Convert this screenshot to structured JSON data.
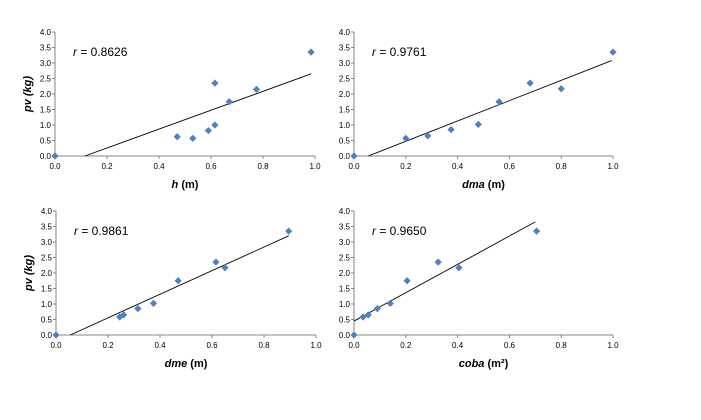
{
  "chart_data": [
    {
      "type": "scatter",
      "xlabel_var": "h",
      "xlabel_unit": " (m)",
      "ylabel": "pv (kg)",
      "annotation": "r = 0.8626",
      "xlim": [
        0,
        1.0
      ],
      "ylim": [
        0,
        4.0
      ],
      "x_ticks": [
        "0.0",
        "0.2",
        "0.4",
        "0.6",
        "0.8",
        "1.0"
      ],
      "y_ticks": [
        "0.0",
        "0.5",
        "1.0",
        "1.5",
        "2.0",
        "2.5",
        "3.0",
        "3.5",
        "4.0"
      ],
      "points": [
        [
          0,
          0
        ],
        [
          0.47,
          0.62
        ],
        [
          0.53,
          0.57
        ],
        [
          0.59,
          0.82
        ],
        [
          0.615,
          1.0
        ],
        [
          0.615,
          2.35
        ],
        [
          0.67,
          1.75
        ],
        [
          0.775,
          2.15
        ],
        [
          0.985,
          3.35
        ]
      ],
      "trendline": [
        [
          0.115,
          0
        ],
        [
          0.985,
          2.65
        ]
      ],
      "color": "#4F81BD"
    },
    {
      "type": "scatter",
      "xlabel_var": "dma",
      "xlabel_unit": " (m)",
      "ylabel": "",
      "annotation": "r = 0.9761",
      "xlim": [
        0,
        1.0
      ],
      "ylim": [
        0,
        4.0
      ],
      "x_ticks": [
        "0.0",
        "0.2",
        "0.4",
        "0.6",
        "0.8",
        "1.0"
      ],
      "y_ticks": [
        "0.0",
        "0.5",
        "1.0",
        "1.5",
        "2.0",
        "2.5",
        "3.0",
        "3.5",
        "4.0"
      ],
      "points": [
        [
          0,
          0
        ],
        [
          0.2,
          0.57
        ],
        [
          0.285,
          0.65
        ],
        [
          0.375,
          0.85
        ],
        [
          0.48,
          1.02
        ],
        [
          0.56,
          1.75
        ],
        [
          0.68,
          2.35
        ],
        [
          0.8,
          2.17
        ],
        [
          1.0,
          3.35
        ]
      ],
      "trendline": [
        [
          0.055,
          0
        ],
        [
          0.995,
          3.08
        ]
      ],
      "color": "#4F81BD"
    },
    {
      "type": "scatter",
      "xlabel_var": "dme",
      "xlabel_unit": " (m)",
      "ylabel": "pv (kg)",
      "annotation": "r = 0.9861",
      "xlim": [
        0,
        1.0
      ],
      "ylim": [
        0,
        4.0
      ],
      "x_ticks": [
        "0.0",
        "0.2",
        "0.4",
        "0.6",
        "0.8",
        "1.0"
      ],
      "y_ticks": [
        "0.0",
        "0.5",
        "1.0",
        "1.5",
        "2.0",
        "2.5",
        "3.0",
        "3.5",
        "4.0"
      ],
      "points": [
        [
          0,
          0
        ],
        [
          0.245,
          0.58
        ],
        [
          0.26,
          0.65
        ],
        [
          0.315,
          0.85
        ],
        [
          0.375,
          1.02
        ],
        [
          0.47,
          1.75
        ],
        [
          0.615,
          2.35
        ],
        [
          0.65,
          2.17
        ],
        [
          0.895,
          3.35
        ]
      ],
      "trendline": [
        [
          0.055,
          0
        ],
        [
          0.895,
          3.2
        ]
      ],
      "color": "#4F81BD"
    },
    {
      "type": "scatter",
      "xlabel_var": "coba",
      "xlabel_unit": " (m²)",
      "ylabel": "",
      "annotation": "r = 0.9650",
      "xlim": [
        0,
        1.0
      ],
      "ylim": [
        0,
        4.0
      ],
      "x_ticks": [
        "0.0",
        "0.2",
        "0.4",
        "0.6",
        "0.8",
        "1.0"
      ],
      "y_ticks": [
        "0.0",
        "0.5",
        "1.0",
        "1.5",
        "2.0",
        "2.5",
        "3.0",
        "3.5",
        "4.0"
      ],
      "points": [
        [
          0,
          0
        ],
        [
          0.035,
          0.58
        ],
        [
          0.055,
          0.65
        ],
        [
          0.09,
          0.85
        ],
        [
          0.14,
          1.02
        ],
        [
          0.205,
          1.75
        ],
        [
          0.325,
          2.35
        ],
        [
          0.405,
          2.17
        ],
        [
          0.705,
          3.35
        ]
      ],
      "trendline": [
        [
          0,
          0.45
        ],
        [
          0.7,
          3.65
        ]
      ],
      "color": "#4F81BD"
    }
  ]
}
